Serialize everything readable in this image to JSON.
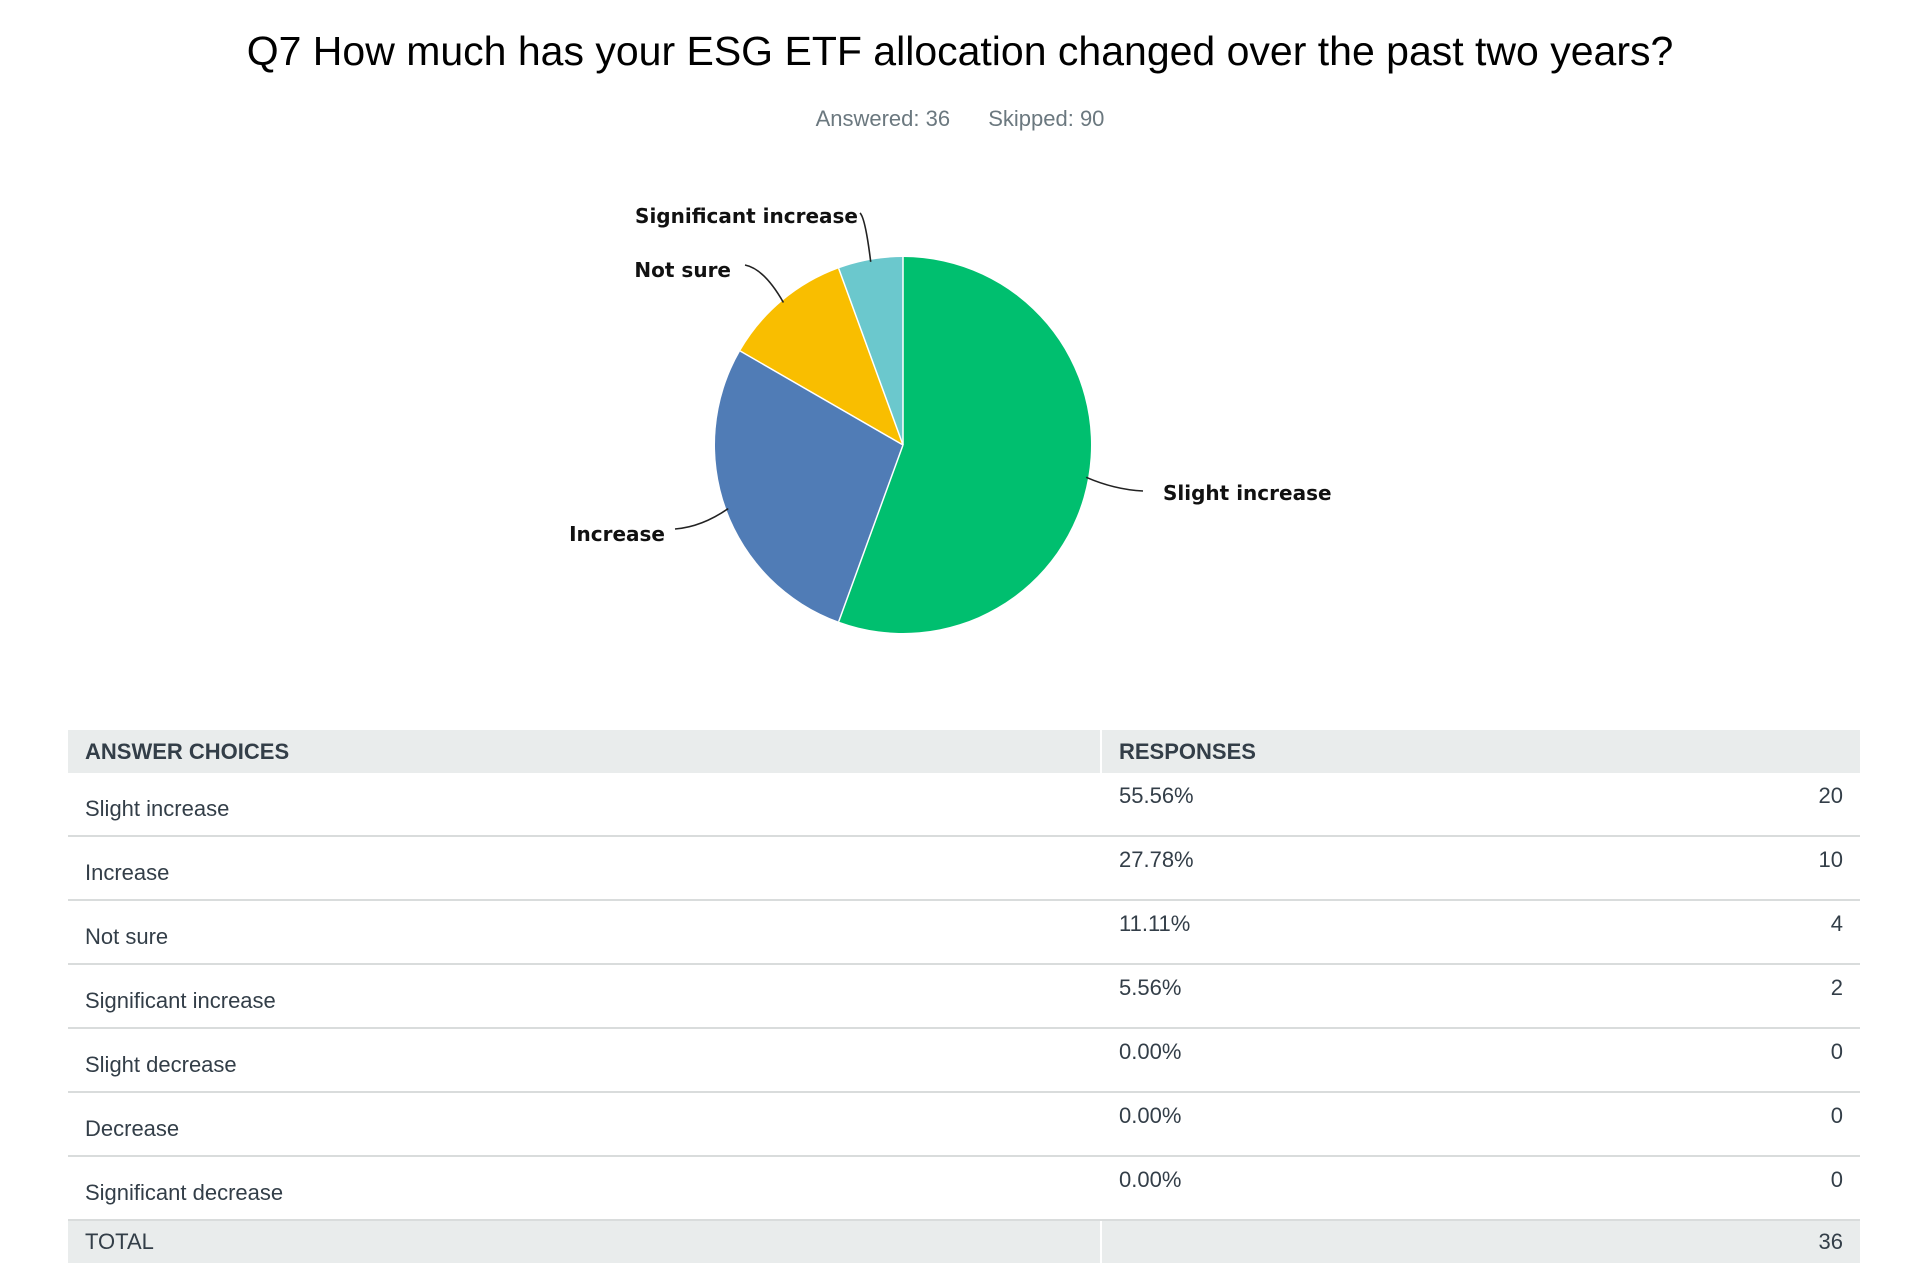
{
  "question": {
    "title": "Q7 How much has your ESG ETF allocation changed over the past two years?",
    "answered_label": "Answered: 36",
    "skipped_label": "Skipped: 90"
  },
  "chart_data": {
    "type": "pie",
    "title": "Q7 How much has your ESG ETF allocation changed over the past two years?",
    "categories": [
      "Slight increase",
      "Increase",
      "Not sure",
      "Significant increase"
    ],
    "values": [
      55.56,
      27.78,
      11.11,
      5.56
    ],
    "colors": [
      "#00bf6f",
      "#507cb6",
      "#f9be00",
      "#6bc8cd"
    ],
    "legend": "none"
  },
  "table": {
    "headers": {
      "choices": "ANSWER CHOICES",
      "responses": "RESPONSES"
    },
    "rows": [
      {
        "choice": "Slight increase",
        "percent": "55.56%",
        "count": "20"
      },
      {
        "choice": "Increase",
        "percent": "27.78%",
        "count": "10"
      },
      {
        "choice": "Not sure",
        "percent": "11.11%",
        "count": "4"
      },
      {
        "choice": "Significant increase",
        "percent": "5.56%",
        "count": "2"
      },
      {
        "choice": "Slight decrease",
        "percent": "0.00%",
        "count": "0"
      },
      {
        "choice": "Decrease",
        "percent": "0.00%",
        "count": "0"
      },
      {
        "choice": "Significant decrease",
        "percent": "0.00%",
        "count": "0"
      }
    ],
    "total_label": "TOTAL",
    "total_count": "36"
  }
}
